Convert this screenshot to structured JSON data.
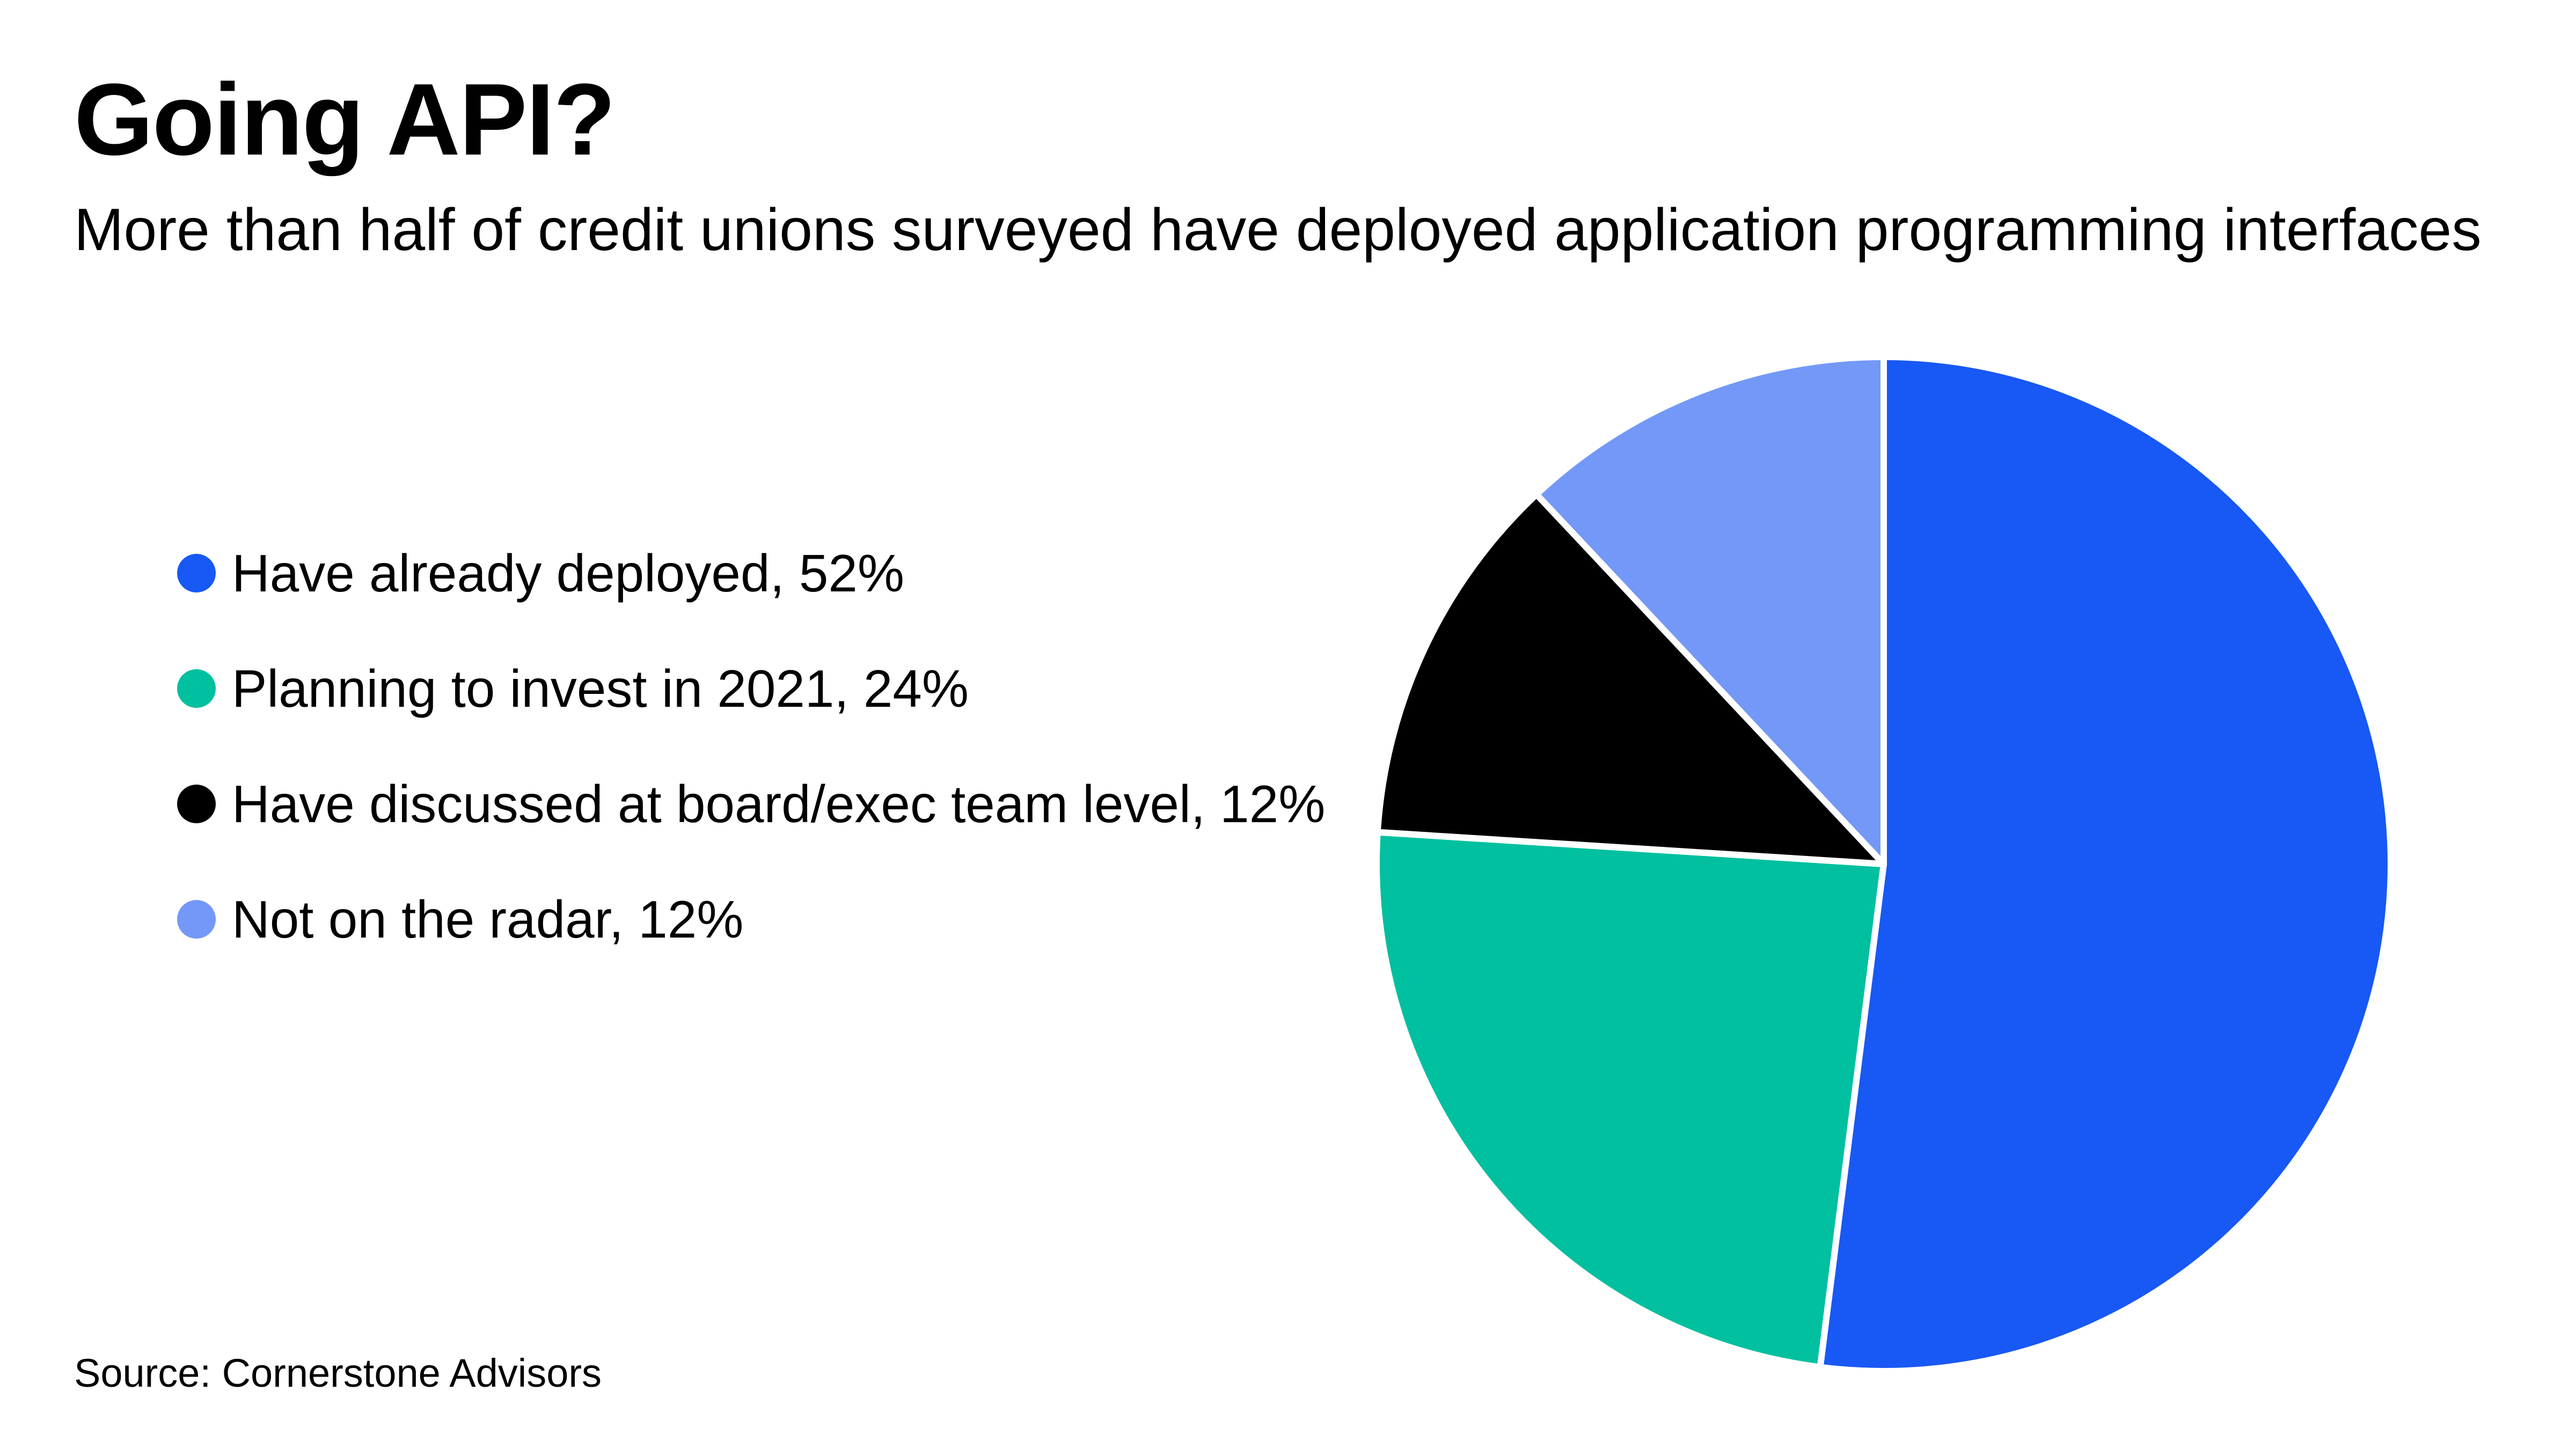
{
  "header": {
    "title": "Going API?",
    "subtitle": "More than half of credit unions surveyed have deployed application programming interfaces"
  },
  "legend": {
    "items": [
      {
        "label": "Have already deployed, 52%",
        "color": "#1858f4"
      },
      {
        "label": "Planning to invest in 2021, 24%",
        "color": "#00c09f"
      },
      {
        "label": "Have discussed at board/exec team level, 12%",
        "color": "#000000"
      },
      {
        "label": "Not on the radar, 12%",
        "color": "#7398f7"
      }
    ]
  },
  "footer": {
    "source": "Source: Cornerstone Advisors"
  },
  "chart_data": {
    "type": "pie",
    "title": "Going API?",
    "subtitle": "More than half of credit unions surveyed have deployed application programming interfaces",
    "categories": [
      "Have already deployed",
      "Planning to invest in 2021",
      "Have discussed at board/exec team level",
      "Not on the radar"
    ],
    "values": [
      52,
      24,
      12,
      12
    ],
    "unit": "%",
    "colors": [
      "#1858f4",
      "#00c09f",
      "#000000",
      "#7398f7"
    ],
    "slice_border_color": "#ffffff",
    "start_direction": "top",
    "direction": "clockwise",
    "legend_placement": "left",
    "source": "Source: Cornerstone Advisors"
  }
}
